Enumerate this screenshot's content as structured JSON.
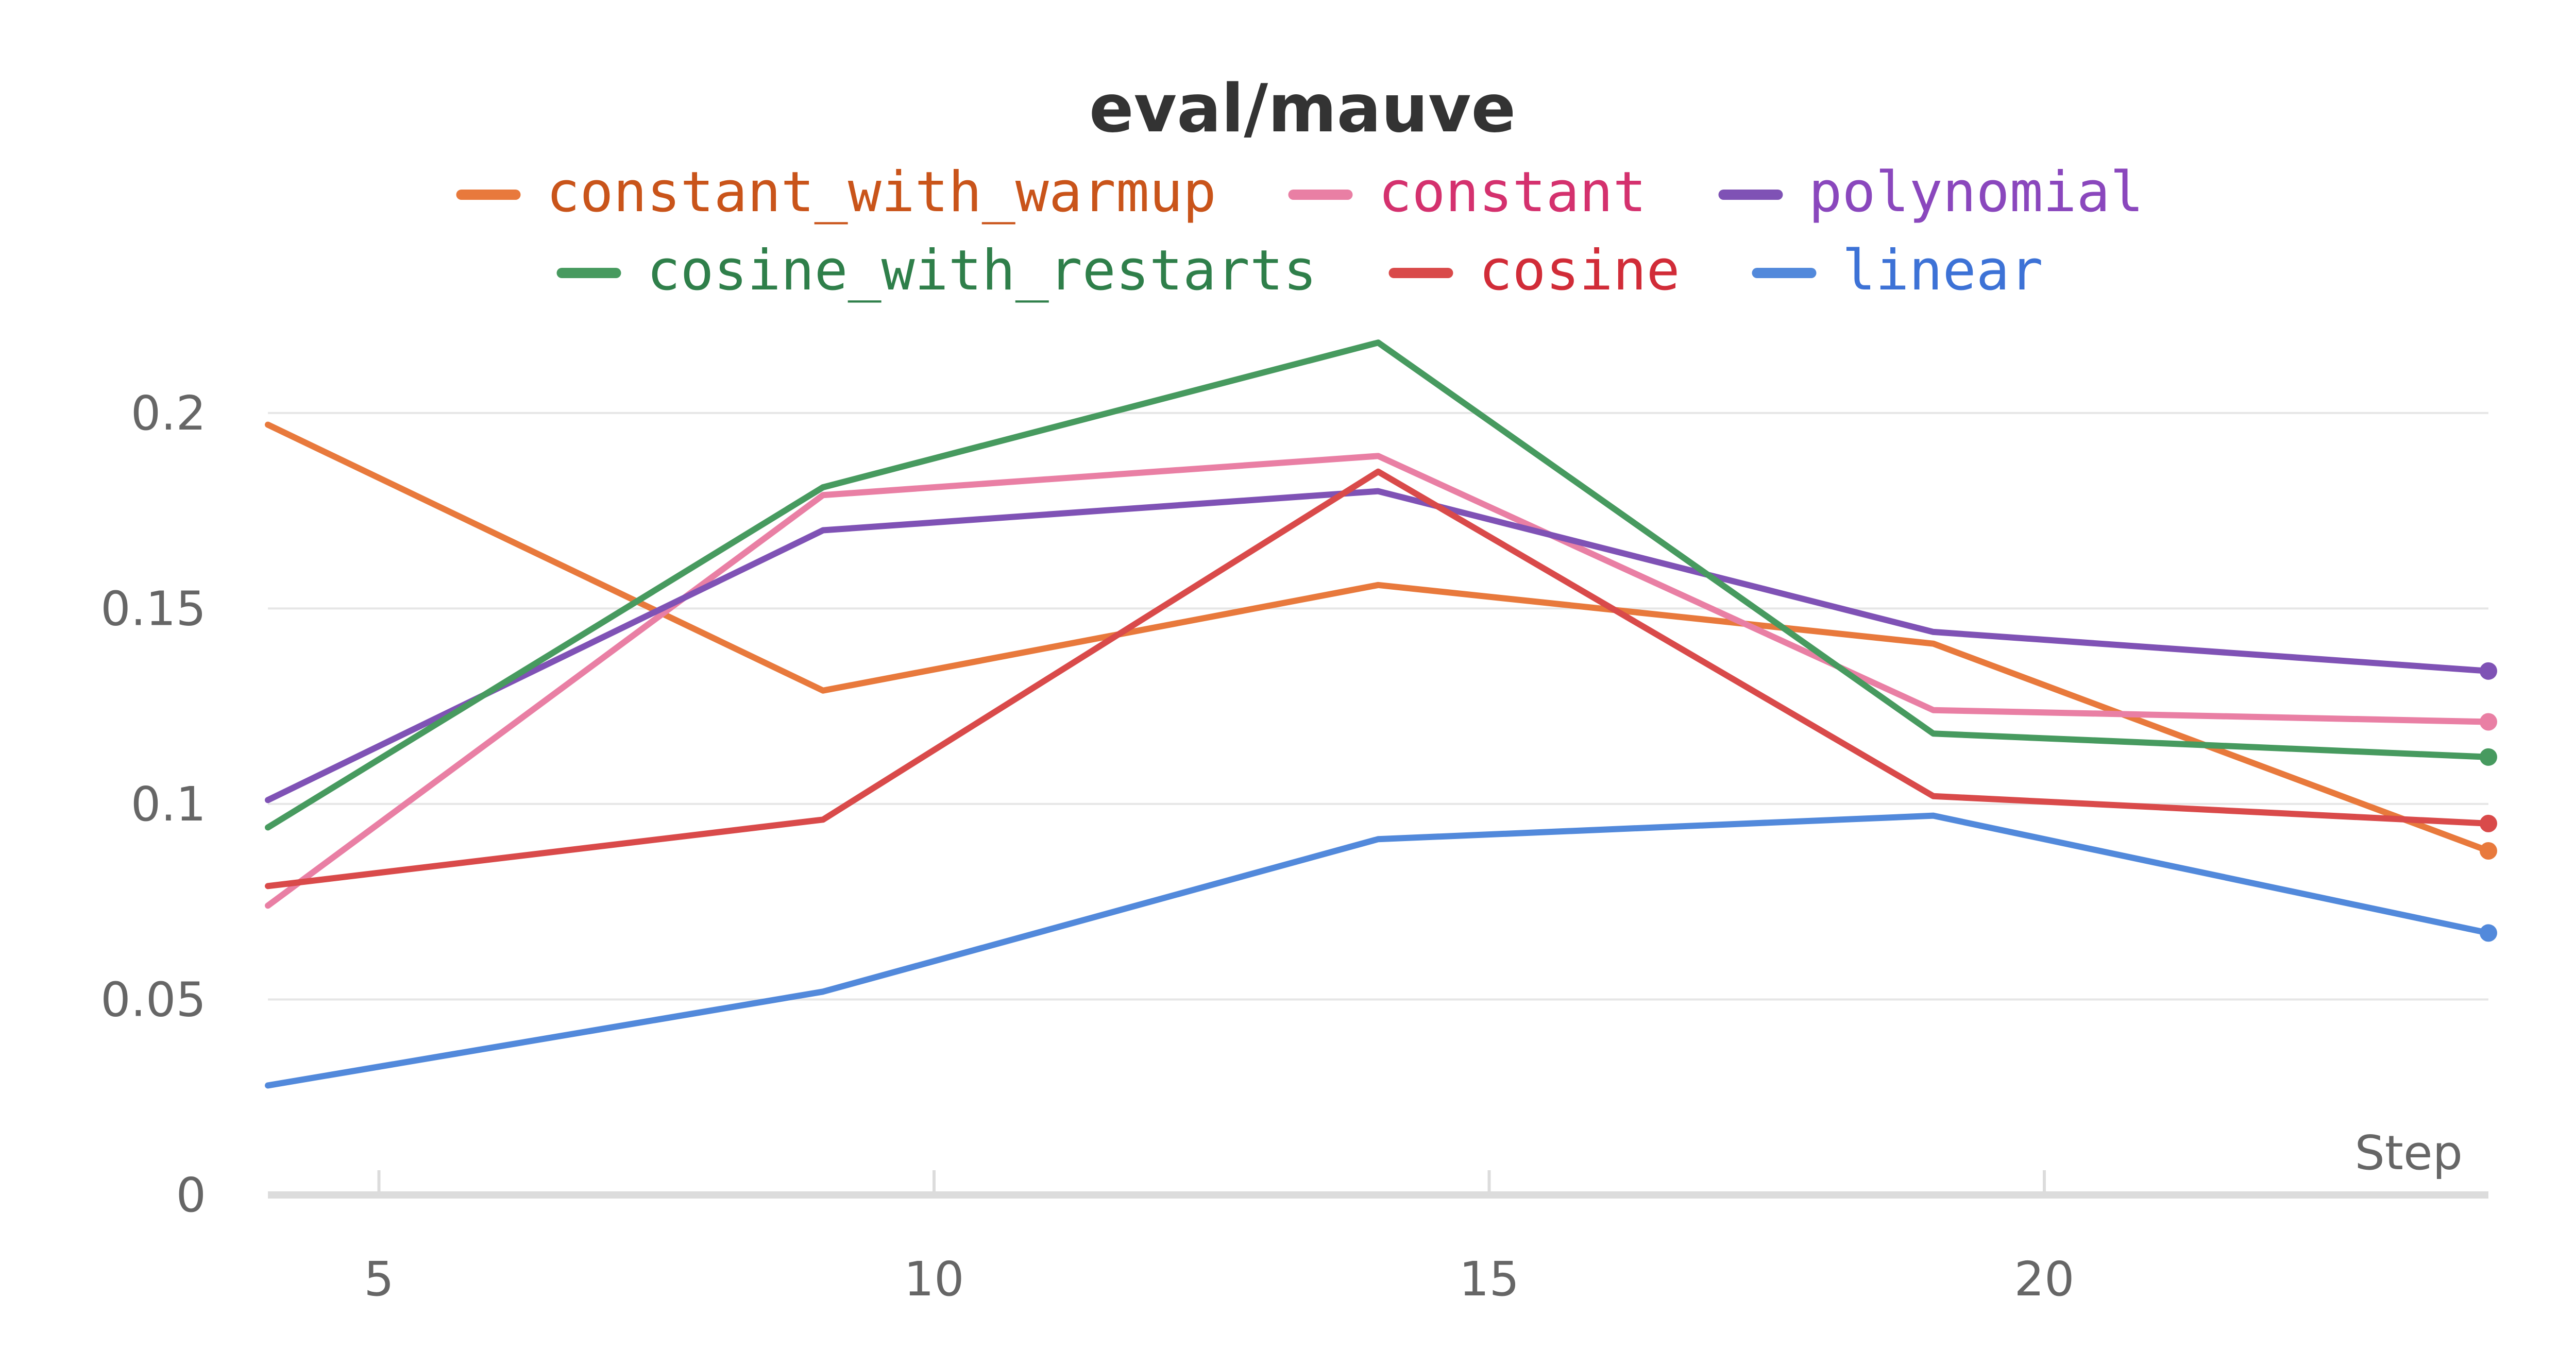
{
  "chart_data": {
    "type": "line",
    "title": "eval/mauve",
    "xlabel": "Step",
    "ylabel": "",
    "x": [
      4,
      9,
      14,
      19,
      24
    ],
    "xlim": [
      4,
      24
    ],
    "ylim": [
      0,
      0.22
    ],
    "xticks": [
      5,
      10,
      15,
      20
    ],
    "xtick_labels": [
      "5",
      "10",
      "15",
      "20"
    ],
    "yticks": [
      0,
      0.05,
      0.1,
      0.15,
      0.2
    ],
    "ytick_labels": [
      "0",
      "0.05",
      "0.1",
      "0.15",
      "0.2"
    ],
    "grid": "horizontal",
    "legend_position": "top",
    "series": [
      {
        "name": "constant_with_warmup",
        "color": "#e8793c",
        "text_color": "#c9541a",
        "values": [
          0.197,
          0.129,
          0.156,
          0.141,
          0.088
        ]
      },
      {
        "name": "constant",
        "color": "#e97fa4",
        "text_color": "#d4316e",
        "values": [
          0.074,
          0.179,
          0.189,
          0.124,
          0.121
        ]
      },
      {
        "name": "polynomial",
        "color": "#7f52b5",
        "text_color": "#8a47bd",
        "values": [
          0.101,
          0.17,
          0.18,
          0.144,
          0.134
        ]
      },
      {
        "name": "cosine_with_restarts",
        "color": "#479a5f",
        "text_color": "#2f7f4a",
        "values": [
          0.094,
          0.181,
          0.218,
          0.118,
          0.112
        ]
      },
      {
        "name": "cosine",
        "color": "#d94a4a",
        "text_color": "#d12c38",
        "values": [
          0.079,
          0.096,
          0.185,
          0.102,
          0.095
        ]
      },
      {
        "name": "linear",
        "color": "#5289db",
        "text_color": "#3d72d6",
        "values": [
          0.028,
          0.052,
          0.091,
          0.097,
          0.067
        ]
      }
    ]
  }
}
